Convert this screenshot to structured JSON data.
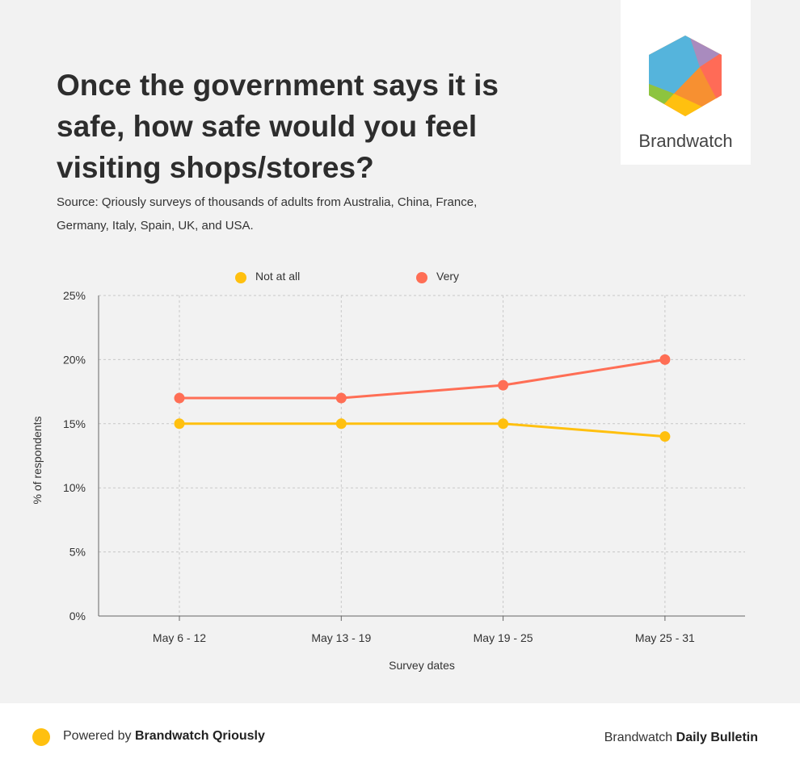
{
  "header": {
    "title": "Once the government says it is safe, how safe would you feel visiting shops/stores?",
    "source": "Source: Qriously surveys of thousands of adults from Australia, China, France, Germany, Italy, Spain, UK, and USA."
  },
  "logo": {
    "text": "Brandwatch"
  },
  "footer": {
    "powered_prefix": "Powered by",
    "powered_brand": "Brandwatch Qriously",
    "right_prefix": "Brandwatch",
    "right_bold": "Daily Bulletin"
  },
  "chart_data": {
    "type": "line",
    "title": "Once the government says it is safe, how safe would you feel visiting shops/stores?",
    "xlabel": "Survey dates",
    "ylabel": "% of respondents",
    "categories": [
      "May 6 - 12",
      "May 13 - 19",
      "May 19 - 25",
      "May 25 - 31"
    ],
    "yticks": [
      "0%",
      "5%",
      "10%",
      "15%",
      "20%",
      "25%"
    ],
    "ylim": [
      0,
      25
    ],
    "grid": true,
    "legend": "top",
    "series": [
      {
        "name": "Not at all",
        "color": "#ffc00f",
        "values": [
          15,
          15,
          15,
          14
        ]
      },
      {
        "name": "Very",
        "color": "#ff6e55",
        "values": [
          17,
          17,
          18,
          20
        ]
      }
    ]
  }
}
